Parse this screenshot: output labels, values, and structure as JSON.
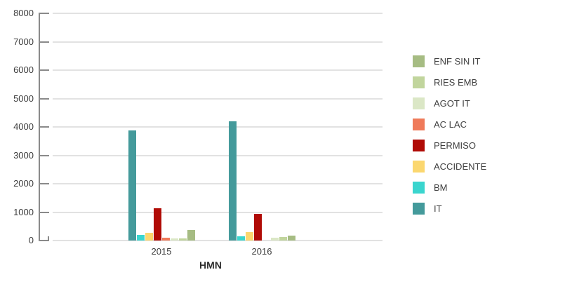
{
  "chart_data": {
    "type": "bar",
    "title": "",
    "xlabel": "HMN",
    "ylabel": "",
    "ylim": [
      0,
      8000
    ],
    "y_ticks": [
      0,
      1000,
      2000,
      3000,
      4000,
      5000,
      6000,
      7000,
      8000
    ],
    "grid": true,
    "legend_position": "right",
    "categories": [
      "2015",
      "2016"
    ],
    "series": [
      {
        "name": "IT",
        "color": "#449a9b",
        "values": [
          3880,
          4200
        ]
      },
      {
        "name": "BM",
        "color": "#3ad5ce",
        "values": [
          200,
          150
        ]
      },
      {
        "name": "ACCIDENTE",
        "color": "#fbd76f",
        "values": [
          260,
          300
        ]
      },
      {
        "name": "PERMISO",
        "color": "#b00b06",
        "values": [
          1130,
          930
        ]
      },
      {
        "name": "AC LAC",
        "color": "#ef7a5a",
        "values": [
          90,
          0
        ]
      },
      {
        "name": "AGOT IT",
        "color": "#dbe7c6",
        "values": [
          65,
          105
        ]
      },
      {
        "name": "RIES EMB",
        "color": "#c1d59d",
        "values": [
          80,
          130
        ]
      },
      {
        "name": "ENF SIN IT",
        "color": "#a6bc83",
        "values": [
          375,
          175
        ]
      }
    ],
    "legend": [
      "ENF SIN IT",
      "RIES EMB",
      "AGOT IT",
      "AC LAC",
      "PERMISO",
      "ACCIDENTE",
      "BM",
      "IT"
    ]
  }
}
